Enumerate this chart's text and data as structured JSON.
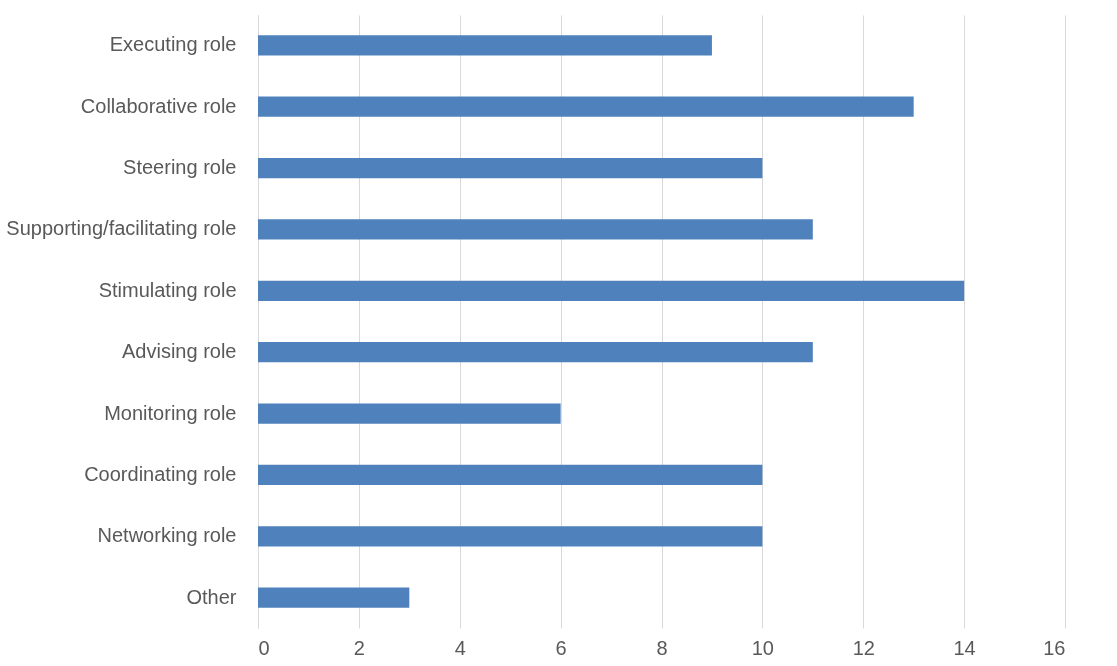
{
  "chart_data": {
    "type": "bar",
    "orientation": "horizontal",
    "categories": [
      "Executing role",
      "Collaborative role",
      "Steering role",
      "Supporting/facilitating role",
      "Stimulating role",
      "Advising role",
      "Monitoring role",
      "Coordinating role",
      "Networking role",
      "Other"
    ],
    "values": [
      9,
      13,
      10,
      11,
      14,
      11,
      6,
      10,
      10,
      3
    ],
    "color": "#4f81bd",
    "xlim": [
      0,
      16
    ],
    "xticks": [
      0,
      2,
      4,
      6,
      8,
      10,
      12,
      14,
      16
    ],
    "grid": "x"
  }
}
